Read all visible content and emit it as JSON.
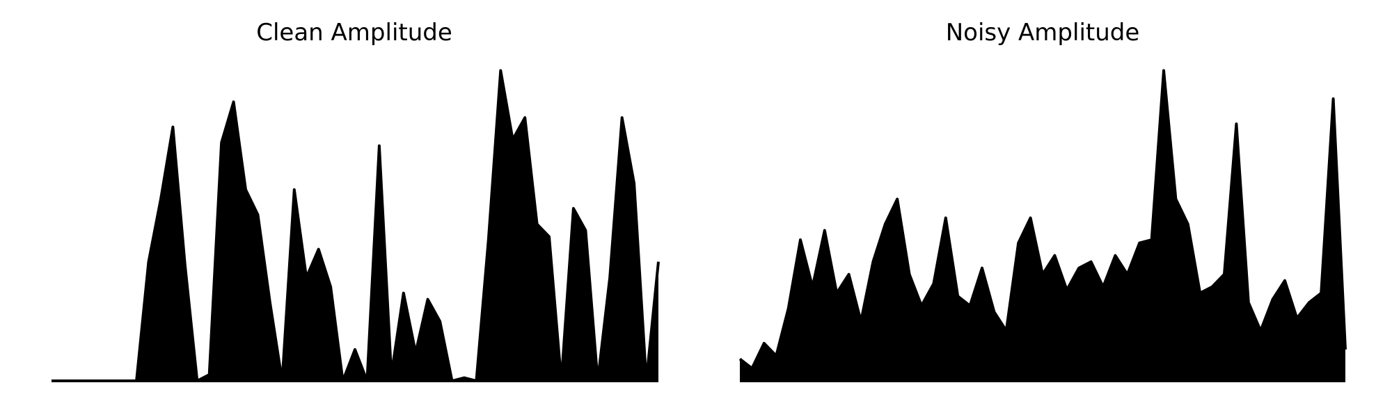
{
  "colors": {
    "background": "#ffffff",
    "waveform": "#000000"
  },
  "chart_data": [
    {
      "type": "area",
      "title": "Clean Amplitude",
      "xlabel": "",
      "ylabel": "",
      "axes_visible": false,
      "grid": false,
      "x": [
        0,
        2,
        4,
        6,
        8,
        10,
        12,
        14,
        16,
        18,
        20,
        22,
        24,
        26,
        28,
        30,
        32,
        34,
        36,
        38,
        40,
        42,
        44,
        46,
        48,
        50,
        52,
        54,
        56,
        58,
        60,
        62,
        64,
        66,
        68,
        70,
        72,
        74,
        76,
        78,
        80,
        82,
        84,
        86,
        88,
        90,
        92,
        94,
        96,
        98,
        100
      ],
      "y": [
        0.0,
        0.0,
        0.0,
        0.0,
        0.0,
        0.0,
        0.0,
        0.0,
        0.38,
        0.58,
        0.81,
        0.37,
        0.0,
        0.02,
        0.76,
        0.89,
        0.61,
        0.53,
        0.25,
        0.0,
        0.61,
        0.33,
        0.42,
        0.3,
        0.0,
        0.1,
        0.0,
        0.75,
        0.02,
        0.28,
        0.09,
        0.26,
        0.19,
        0.0,
        0.01,
        0.0,
        0.45,
        0.99,
        0.77,
        0.84,
        0.5,
        0.46,
        0.0,
        0.55,
        0.48,
        0.0,
        0.33,
        0.84,
        0.63,
        0.0,
        0.38
      ]
    },
    {
      "type": "area",
      "title": "Noisy Amplitude",
      "xlabel": "",
      "ylabel": "",
      "axes_visible": false,
      "grid": false,
      "x": [
        0,
        2,
        4,
        6,
        8,
        10,
        12,
        14,
        16,
        18,
        20,
        22,
        24,
        26,
        28,
        30,
        32,
        34,
        36,
        38,
        40,
        42,
        44,
        46,
        48,
        50,
        52,
        54,
        56,
        58,
        60,
        62,
        64,
        66,
        68,
        70,
        72,
        74,
        76,
        78,
        80,
        82,
        84,
        86,
        88,
        90,
        92,
        94,
        96,
        98,
        100
      ],
      "y": [
        0.07,
        0.04,
        0.12,
        0.08,
        0.23,
        0.45,
        0.3,
        0.48,
        0.28,
        0.34,
        0.19,
        0.38,
        0.5,
        0.58,
        0.34,
        0.24,
        0.31,
        0.52,
        0.27,
        0.24,
        0.36,
        0.22,
        0.16,
        0.44,
        0.52,
        0.34,
        0.4,
        0.29,
        0.36,
        0.38,
        0.3,
        0.4,
        0.34,
        0.44,
        0.45,
        0.99,
        0.58,
        0.5,
        0.28,
        0.3,
        0.34,
        0.82,
        0.25,
        0.16,
        0.26,
        0.32,
        0.2,
        0.25,
        0.28,
        0.9,
        0.1
      ]
    }
  ]
}
